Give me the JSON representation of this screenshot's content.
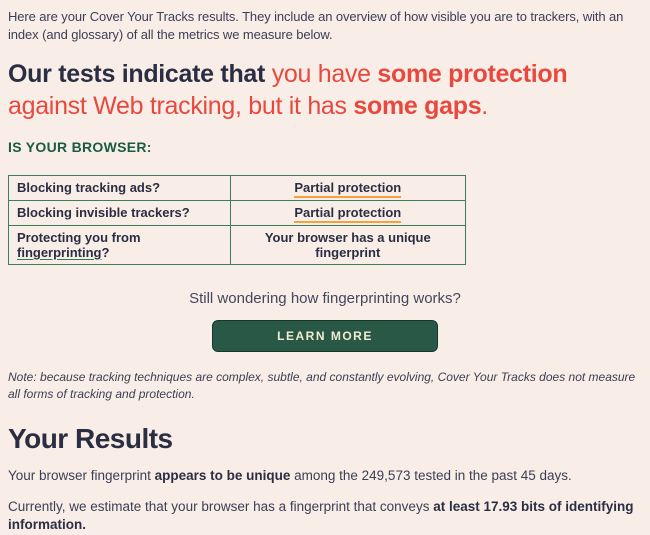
{
  "colors": {
    "background": "#f8eee7",
    "navy": "#2b2d42",
    "body_text": "#3c3e55",
    "red": "#e8483d",
    "green_heading": "#1a5c41",
    "table_border": "#3a7d5b",
    "underline_orange": "#f2a33c",
    "underline_green": "#2e7d4f",
    "button_bg": "#2a5847",
    "button_text": "#f2ecd0"
  },
  "intro": "Here are your Cover Your Tracks results. They include an overview of how visible you are to trackers, with an index (and glossary) of all the metrics we measure below.",
  "headline": {
    "line1_navy": "Our tests indicate that ",
    "line1_red": "you have ",
    "line1_red_bold": "some protection",
    "line2_red": "against Web tracking, but it has ",
    "line2_red_bold": "some gaps",
    "line2_period": "."
  },
  "browser_section": {
    "heading": "IS YOUR BROWSER:",
    "rows": [
      {
        "question": "Blocking tracking ads?",
        "answer": "Partial protection"
      },
      {
        "question": "Blocking invisible trackers?",
        "answer": "Partial protection"
      },
      {
        "question_prefix": "Protecting you from ",
        "question_link": "fingerprinting",
        "question_suffix": "?",
        "answer": "Your browser has a unique fingerprint"
      }
    ]
  },
  "fingerprinting_prompt": "Still wondering how fingerprinting works?",
  "learn_more_label": "LEARN MORE",
  "note": "Note: because tracking techniques are complex, subtle, and constantly evolving, Cover Your Tracks does not measure all forms of tracking and protection.",
  "results": {
    "title": "Your Results",
    "p1_prefix": "Your browser fingerprint ",
    "p1_bold": "appears to be unique",
    "p1_suffix": " among the 249,573 tested in the past 45 days.",
    "p2_prefix": "Currently, we estimate that your browser has a fingerprint that conveys ",
    "p2_bold": "at least 17.93 bits of identifying information."
  }
}
